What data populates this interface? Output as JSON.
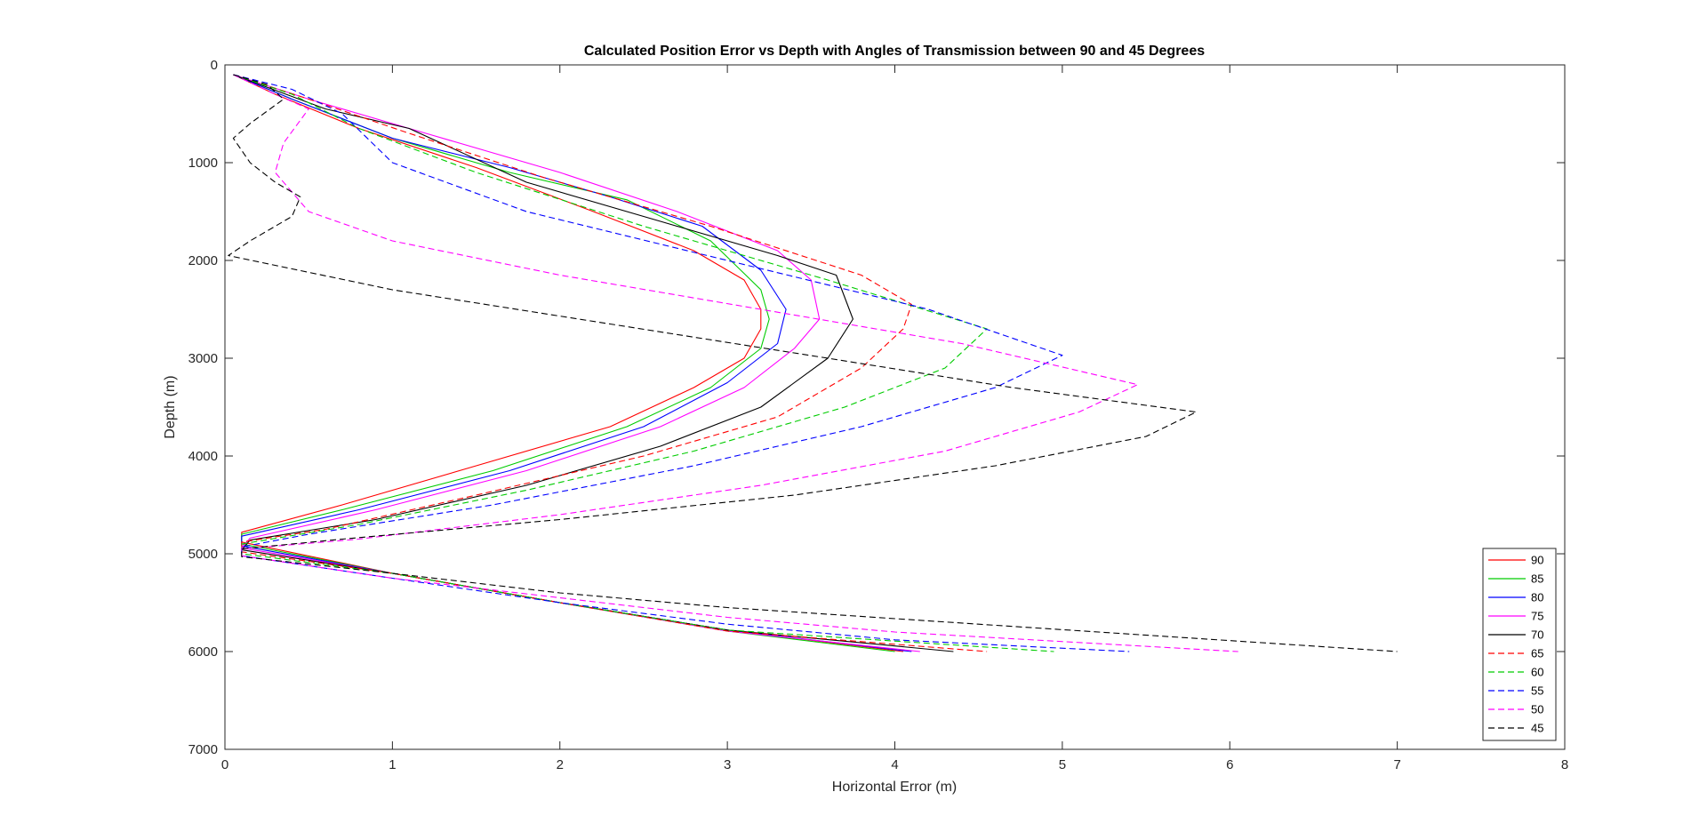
{
  "chart_data": {
    "type": "line",
    "title": "Calculated Position Error vs Depth with Angles of Transmission between 90 and 45 Degrees",
    "xlabel": "Horizontal Error (m)",
    "ylabel": "Depth (m)",
    "xlim": [
      0,
      8
    ],
    "ylim": [
      0,
      7000
    ],
    "y_reversed": true,
    "xticks": [
      0,
      1,
      2,
      3,
      4,
      5,
      6,
      7,
      8
    ],
    "yticks": [
      0,
      1000,
      2000,
      3000,
      4000,
      5000,
      6000,
      7000
    ],
    "grid": false,
    "legend_position": "bottom-right",
    "series": [
      {
        "name": "90",
        "color": "#ff0000",
        "dash": "solid",
        "x": [
          0.05,
          0.3,
          0.8,
          1.5,
          2.2,
          2.8,
          3.1,
          3.2,
          3.2,
          3.1,
          2.8,
          2.3,
          1.5,
          0.7,
          0.1,
          0.1,
          1.0,
          2.0,
          3.0,
          4.05
        ],
        "y": [
          100,
          300,
          650,
          1050,
          1500,
          1900,
          2200,
          2500,
          2700,
          3000,
          3300,
          3700,
          4100,
          4500,
          4780,
          4880,
          5200,
          5500,
          5780,
          6000
        ]
      },
      {
        "name": "85",
        "color": "#00cc00",
        "dash": "solid",
        "x": [
          0.05,
          0.4,
          1.0,
          1.7,
          2.4,
          2.9,
          3.2,
          3.25,
          3.2,
          2.9,
          2.4,
          1.6,
          0.7,
          0.1,
          0.1,
          1.0,
          2.0,
          3.0,
          4.0
        ],
        "y": [
          100,
          350,
          750,
          1100,
          1380,
          1800,
          2300,
          2600,
          2900,
          3300,
          3700,
          4150,
          4550,
          4800,
          4900,
          5200,
          5500,
          5790,
          6000
        ]
      },
      {
        "name": "80",
        "color": "#0000ff",
        "dash": "solid",
        "x": [
          0.05,
          0.4,
          1.0,
          1.7,
          2.3,
          2.85,
          3.2,
          3.35,
          3.3,
          3.0,
          2.5,
          1.7,
          0.8,
          0.1,
          0.1,
          1.0,
          2.0,
          3.0,
          4.1
        ],
        "y": [
          100,
          350,
          750,
          1050,
          1350,
          1650,
          2100,
          2500,
          2850,
          3250,
          3700,
          4150,
          4550,
          4820,
          4920,
          5200,
          5500,
          5780,
          6000
        ]
      },
      {
        "name": "75",
        "color": "#ff00ff",
        "dash": "solid",
        "x": [
          0.05,
          0.5,
          1.2,
          2.0,
          2.7,
          3.3,
          3.5,
          3.55,
          3.4,
          3.1,
          2.6,
          1.8,
          0.9,
          0.15,
          0.1,
          1.0,
          2.0,
          3.0,
          4.15
        ],
        "y": [
          100,
          350,
          700,
          1100,
          1500,
          1900,
          2200,
          2600,
          2900,
          3300,
          3700,
          4150,
          4550,
          4840,
          4940,
          5200,
          5500,
          5790,
          6000
        ]
      },
      {
        "name": "70",
        "color": "#000000",
        "dash": "solid",
        "x": [
          0.05,
          0.6,
          1.1,
          1.8,
          2.6,
          3.3,
          3.65,
          3.75,
          3.6,
          3.2,
          2.6,
          1.8,
          0.9,
          0.15,
          0.1,
          1.0,
          2.0,
          3.0,
          4.35
        ],
        "y": [
          100,
          450,
          650,
          1200,
          1600,
          1950,
          2150,
          2600,
          3000,
          3500,
          3900,
          4300,
          4650,
          4860,
          4960,
          5200,
          5500,
          5780,
          6000
        ]
      },
      {
        "name": "65",
        "color": "#ff0000",
        "dash": "dashed",
        "x": [
          0.05,
          0.5,
          1.1,
          1.9,
          2.9,
          3.8,
          4.1,
          4.05,
          3.8,
          3.3,
          2.5,
          1.5,
          0.6,
          0.1,
          0.1,
          1.0,
          2.0,
          3.0,
          4.55
        ],
        "y": [
          100,
          350,
          700,
          1150,
          1650,
          2150,
          2450,
          2700,
          3100,
          3600,
          4000,
          4400,
          4750,
          4880,
          4980,
          5200,
          5500,
          5790,
          6000
        ]
      },
      {
        "name": "60",
        "color": "#00cc00",
        "dash": "dashed",
        "x": [
          0.05,
          0.4,
          0.8,
          1.5,
          2.5,
          3.6,
          4.55,
          4.3,
          3.7,
          2.8,
          1.8,
          0.8,
          0.1,
          0.1,
          1.0,
          2.0,
          3.0,
          4.95
        ],
        "y": [
          100,
          300,
          650,
          1100,
          1650,
          2200,
          2700,
          3100,
          3500,
          3950,
          4350,
          4700,
          4900,
          5000,
          5200,
          5500,
          5780,
          6000
        ]
      },
      {
        "name": "55",
        "color": "#0000ff",
        "dash": "dashed",
        "x": [
          0.05,
          0.4,
          0.7,
          1.0,
          1.8,
          3.0,
          4.2,
          5.0,
          4.6,
          3.8,
          2.8,
          1.6,
          0.5,
          0.1,
          0.1,
          1.0,
          2.0,
          3.0,
          4.0,
          5.4
        ],
        "y": [
          100,
          250,
          500,
          1000,
          1500,
          2000,
          2500,
          2970,
          3300,
          3700,
          4100,
          4500,
          4800,
          4930,
          5020,
          5250,
          5500,
          5720,
          5880,
          6000
        ]
      },
      {
        "name": "50",
        "color": "#ff00ff",
        "dash": "dashed",
        "x": [
          0.05,
          0.3,
          0.5,
          0.35,
          0.3,
          0.5,
          1.0,
          2.0,
          3.2,
          4.4,
          5.45,
          5.1,
          4.3,
          3.2,
          2.0,
          0.8,
          0.1,
          0.1,
          1.0,
          2.0,
          3.0,
          4.0,
          6.05
        ],
        "y": [
          100,
          300,
          450,
          800,
          1100,
          1500,
          1800,
          2150,
          2500,
          2850,
          3270,
          3550,
          3950,
          4300,
          4600,
          4850,
          4950,
          5020,
          5250,
          5450,
          5650,
          5800,
          6000
        ]
      },
      {
        "name": "45",
        "color": "#000000",
        "dash": "dashed",
        "x": [
          0.05,
          0.25,
          0.35,
          0.15,
          0.05,
          0.15,
          0.3,
          0.45,
          0.4,
          0.15,
          0.02,
          0.3,
          1.0,
          2.3,
          3.6,
          4.7,
          5.8,
          5.5,
          4.6,
          3.4,
          2.0,
          0.7,
          0.1,
          0.1,
          1.0,
          2.0,
          3.0,
          4.5,
          7.0
        ],
        "y": [
          100,
          200,
          350,
          600,
          750,
          1000,
          1200,
          1350,
          1550,
          1800,
          1950,
          2050,
          2300,
          2650,
          3000,
          3300,
          3550,
          3800,
          4100,
          4400,
          4650,
          4850,
          4950,
          5030,
          5200,
          5400,
          5550,
          5720,
          6000
        ]
      }
    ]
  }
}
